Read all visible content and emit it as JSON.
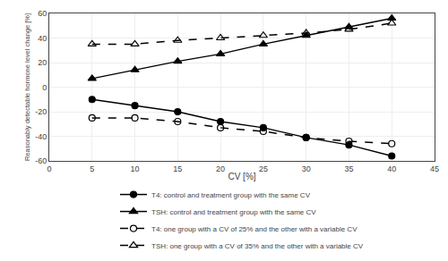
{
  "chart_data": {
    "type": "line",
    "x": [
      5,
      10,
      15,
      20,
      25,
      30,
      35,
      40
    ],
    "series": [
      {
        "name": "T4: control and treatment group with the same CV",
        "color": "black",
        "marker": "circle",
        "line_style": "solid",
        "values": [
          -10,
          -15,
          -20,
          -28,
          -33,
          -41,
          -47,
          -56
        ]
      },
      {
        "name": "TSH: control and treatment group with the same CV",
        "color": "black",
        "marker": "triangle",
        "line_style": "solid",
        "values": [
          7,
          14,
          21,
          27,
          35,
          42,
          49,
          56
        ]
      },
      {
        "name": "T4: one group with a CV of 25% and the other with a variable CV",
        "color": "black",
        "marker": "open circle",
        "line_style": "dashed",
        "values": [
          -25,
          -25,
          -28,
          -33,
          -36,
          -41,
          -44,
          -46
        ]
      },
      {
        "name": "TSH: one group with a CV of 35% and the other with a variable CV",
        "color": "black",
        "marker": "open triangle",
        "line_style": "dashed",
        "values": [
          35,
          35,
          38,
          40,
          42,
          44,
          47,
          52
        ]
      }
    ],
    "xlabel": "CV [%]",
    "ylabel": "Reasonably detectable hormone level change [%]",
    "xlim": [
      0,
      45
    ],
    "ylim": [
      -60,
      60
    ],
    "xticks": [
      0,
      5,
      10,
      15,
      20,
      25,
      30,
      35,
      40,
      45
    ],
    "yticks": [
      -60,
      -40,
      -20,
      0,
      20,
      40,
      60
    ],
    "grid": true,
    "legend": "bottom"
  }
}
